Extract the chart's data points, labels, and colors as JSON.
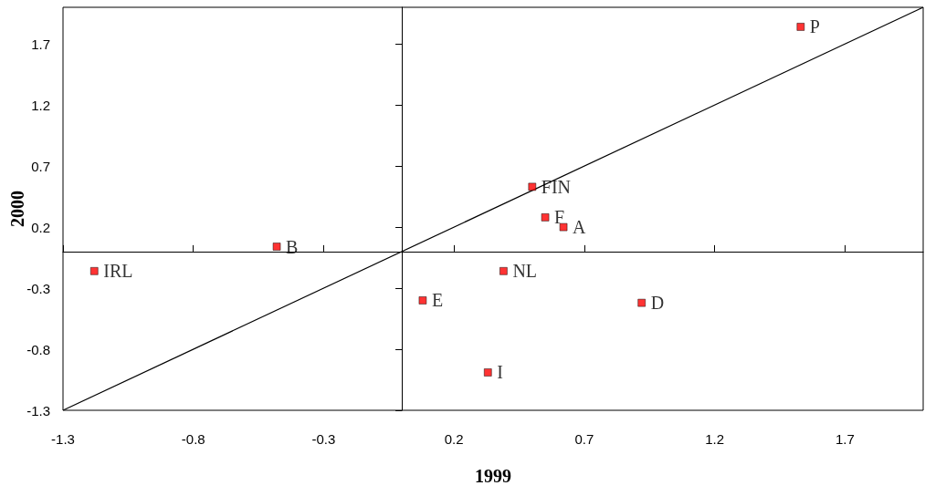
{
  "chart_data": {
    "type": "scatter",
    "xlabel": "1999",
    "ylabel": "2000",
    "xlim": [
      -1.3,
      2.0
    ],
    "ylim": [
      -1.3,
      2.0
    ],
    "xticks": [
      -1.3,
      -0.8,
      -0.3,
      0.2,
      0.7,
      1.2,
      1.7
    ],
    "yticks": [
      -1.3,
      -0.8,
      -0.3,
      0.2,
      0.7,
      1.2,
      1.7
    ],
    "grid": false,
    "marker": "square",
    "series": [
      {
        "color": "#ff0000",
        "x": [
          1.53,
          0.5,
          0.55,
          0.62,
          -0.48,
          -1.18,
          0.39,
          0.08,
          0.92,
          0.33
        ],
        "values": [
          1.84,
          0.53,
          0.28,
          0.2,
          0.04,
          -0.16,
          -0.16,
          -0.4,
          -0.42,
          -0.99
        ]
      },
      {
        "type": "line",
        "color": "#000000",
        "marker": "none",
        "x": [
          -1.3,
          2.0
        ],
        "values": [
          -1.3,
          2.0
        ]
      }
    ],
    "annotations": [
      {
        "text": "P",
        "x": 1.53,
        "y": 1.84
      },
      {
        "text": "FIN",
        "x": 0.5,
        "y": 0.53
      },
      {
        "text": "F",
        "x": 0.55,
        "y": 0.28
      },
      {
        "text": "A",
        "x": 0.62,
        "y": 0.2
      },
      {
        "text": "B",
        "x": -0.48,
        "y": 0.04
      },
      {
        "text": "IRL",
        "x": -1.18,
        "y": -0.16
      },
      {
        "text": "NL",
        "x": 0.39,
        "y": -0.16
      },
      {
        "text": "E",
        "x": 0.08,
        "y": -0.4
      },
      {
        "text": "D",
        "x": 0.92,
        "y": -0.42
      },
      {
        "text": "I",
        "x": 0.33,
        "y": -0.99
      }
    ]
  }
}
